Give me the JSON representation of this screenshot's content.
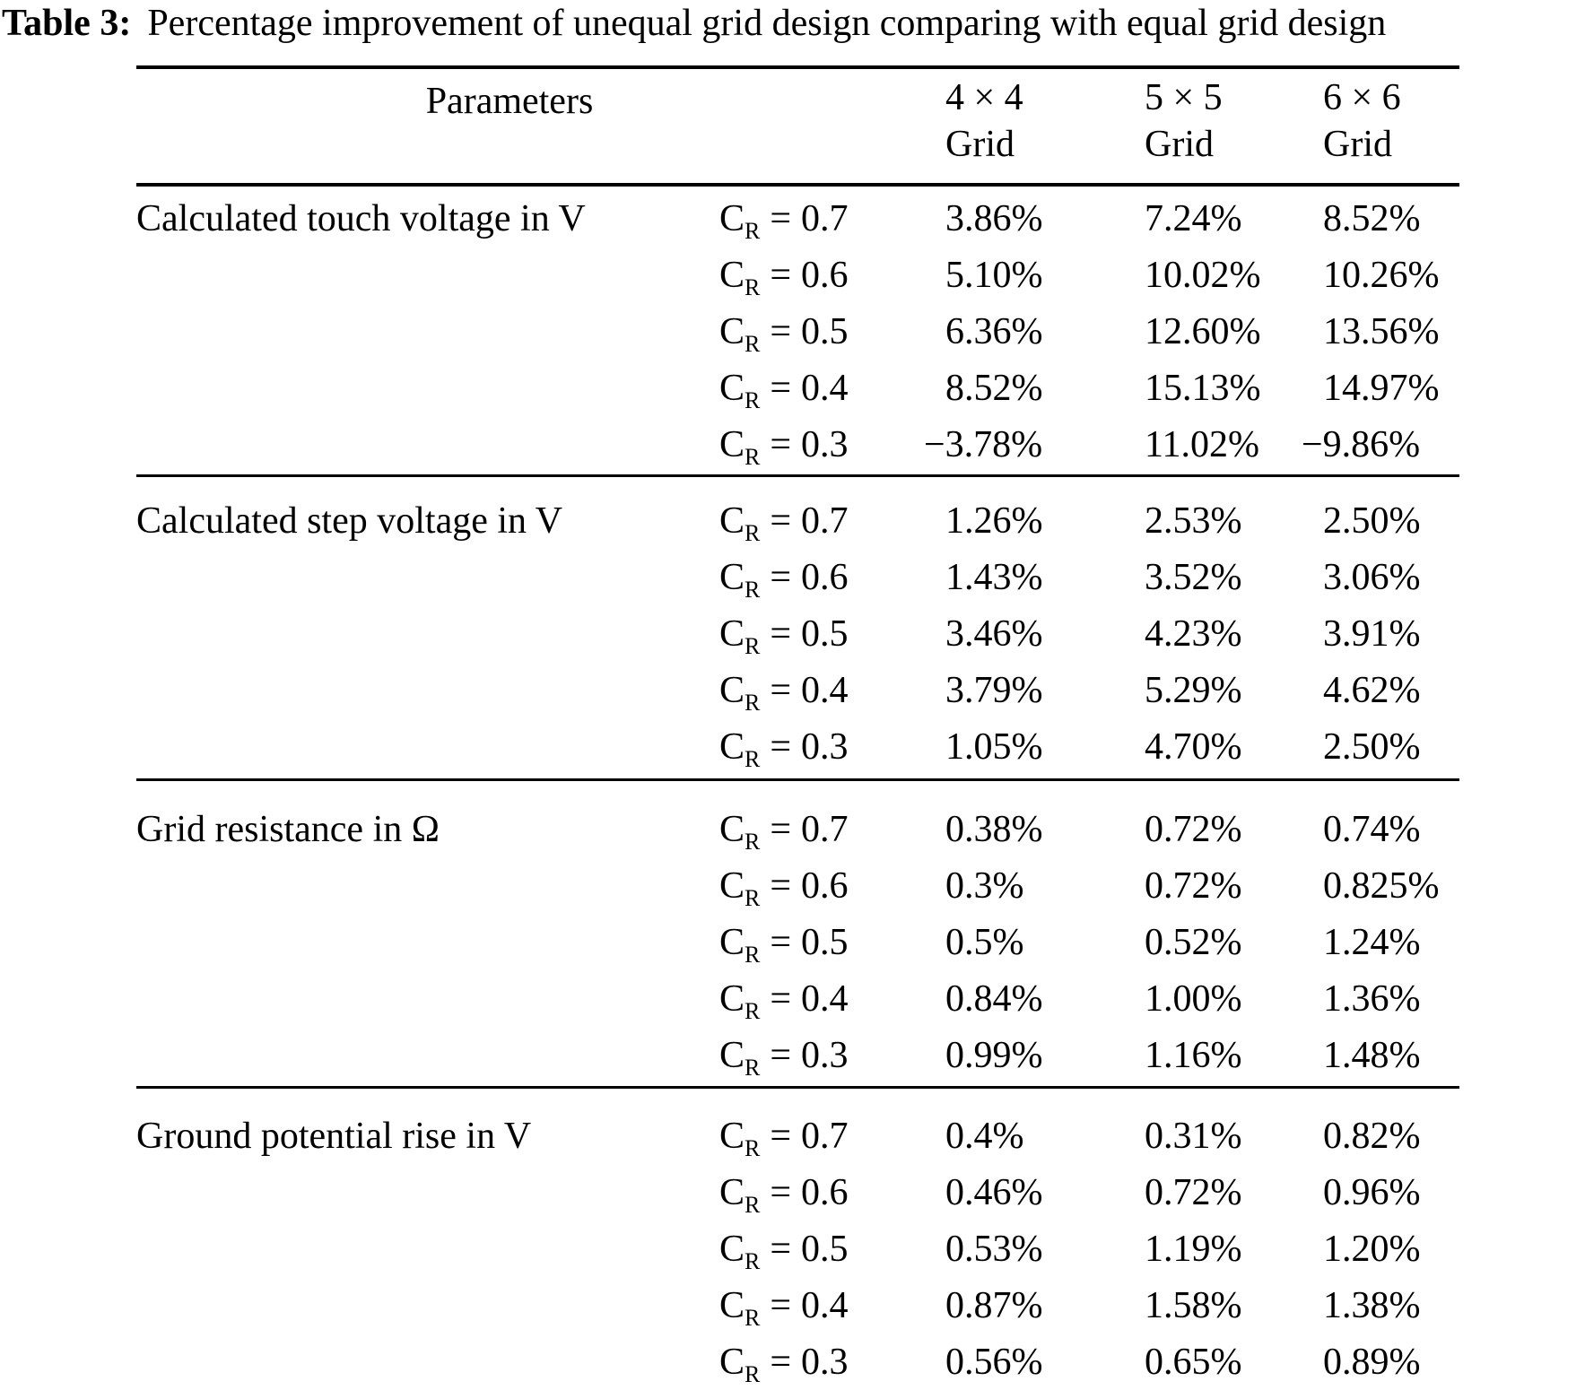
{
  "title": {
    "label": "Table 3:",
    "text": "Percentage improvement of unequal grid design comparing with equal grid design"
  },
  "header": {
    "parameters": "Parameters",
    "columns": [
      {
        "line1": "4 × 4",
        "line2": "Grid"
      },
      {
        "line1": "5 × 5",
        "line2": "Grid"
      },
      {
        "line1": "6 × 6",
        "line2": "Grid"
      }
    ]
  },
  "cr_symbol": {
    "base": "C",
    "sub": "R",
    "eq": "="
  },
  "sections": [
    {
      "label": "Calculated touch voltage in V",
      "rows": [
        {
          "cr": "0.7",
          "v44": "3.86%",
          "v55": "7.24%",
          "v66": "8.52%"
        },
        {
          "cr": "0.6",
          "v44": "5.10%",
          "v55": "10.02%",
          "v66": "10.26%"
        },
        {
          "cr": "0.5",
          "v44": "6.36%",
          "v55": "12.60%",
          "v66": "13.56%"
        },
        {
          "cr": "0.4",
          "v44": "8.52%",
          "v55": "15.13%",
          "v66": "14.97%"
        },
        {
          "cr": "0.3",
          "v44": "−3.78%",
          "v55": "11.02%",
          "v66": "−9.86%"
        }
      ]
    },
    {
      "label": "Calculated step voltage in V",
      "rows": [
        {
          "cr": "0.7",
          "v44": "1.26%",
          "v55": "2.53%",
          "v66": "2.50%"
        },
        {
          "cr": "0.6",
          "v44": "1.43%",
          "v55": "3.52%",
          "v66": "3.06%"
        },
        {
          "cr": "0.5",
          "v44": "3.46%",
          "v55": "4.23%",
          "v66": "3.91%"
        },
        {
          "cr": "0.4",
          "v44": "3.79%",
          "v55": "5.29%",
          "v66": "4.62%"
        },
        {
          "cr": "0.3",
          "v44": "1.05%",
          "v55": "4.70%",
          "v66": "2.50%"
        }
      ]
    },
    {
      "label": "Grid resistance in Ω",
      "rows": [
        {
          "cr": "0.7",
          "v44": "0.38%",
          "v55": "0.72%",
          "v66": "0.74%"
        },
        {
          "cr": "0.6",
          "v44": "0.3%",
          "v55": "0.72%",
          "v66": "0.825%"
        },
        {
          "cr": "0.5",
          "v44": "0.5%",
          "v55": "0.52%",
          "v66": "1.24%"
        },
        {
          "cr": "0.4",
          "v44": "0.84%",
          "v55": "1.00%",
          "v66": "1.36%"
        },
        {
          "cr": "0.3",
          "v44": "0.99%",
          "v55": "1.16%",
          "v66": "1.48%"
        }
      ]
    },
    {
      "label": "Ground potential rise in V",
      "rows": [
        {
          "cr": "0.7",
          "v44": "0.4%",
          "v55": "0.31%",
          "v66": "0.82%"
        },
        {
          "cr": "0.6",
          "v44": "0.46%",
          "v55": "0.72%",
          "v66": "0.96%"
        },
        {
          "cr": "0.5",
          "v44": "0.53%",
          "v55": "1.19%",
          "v66": "1.20%"
        },
        {
          "cr": "0.4",
          "v44": "0.87%",
          "v55": "1.58%",
          "v66": "1.38%"
        },
        {
          "cr": "0.3",
          "v44": "0.56%",
          "v55": "0.65%",
          "v66": "0.89%"
        }
      ]
    }
  ],
  "colors": {
    "text": "#000000",
    "background": "#ffffff",
    "rule": "#000000"
  }
}
